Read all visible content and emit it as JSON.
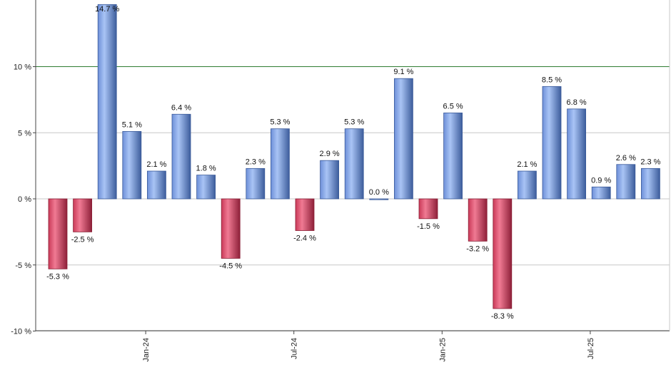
{
  "chart_data": {
    "type": "bar",
    "title": "",
    "xlabel": "",
    "ylabel": "",
    "ylim": [
      -10,
      15
    ],
    "yticks": [
      {
        "value": -10,
        "label": "-10 %"
      },
      {
        "value": -5,
        "label": "-5 %"
      },
      {
        "value": 0,
        "label": "0 %"
      },
      {
        "value": 5,
        "label": "5 %"
      },
      {
        "value": 10,
        "label": "10 %"
      }
    ],
    "reference_line": {
      "value": 10,
      "color": "#2e7d32"
    },
    "grid": true,
    "values": [
      -5.3,
      -2.5,
      14.7,
      5.1,
      2.1,
      6.4,
      1.8,
      -4.5,
      2.3,
      5.3,
      -2.4,
      2.9,
      5.3,
      0.0,
      9.1,
      -1.5,
      6.5,
      -3.2,
      -8.3,
      2.1,
      8.5,
      6.8,
      0.9,
      2.6,
      2.3
    ],
    "labels": [
      "-5.3 %",
      "-2.5 %",
      "14.7 %",
      "5.1 %",
      "2.1 %",
      "6.4 %",
      "1.8 %",
      "-4.5 %",
      "2.3 %",
      "5.3 %",
      "-2.4 %",
      "2.9 %",
      "5.3 %",
      "0.0 %",
      "9.1 %",
      "-1.5 %",
      "6.5 %",
      "-3.2 %",
      "-8.3 %",
      "2.1 %",
      "8.5 %",
      "6.8 %",
      "0.9 %",
      "2.6 %",
      "2.3 %"
    ],
    "xticks": [
      {
        "index": 4,
        "label": "Jan-24"
      },
      {
        "index": 10,
        "label": "Jul-24"
      },
      {
        "index": 16,
        "label": "Jan-25"
      },
      {
        "index": 22,
        "label": "Jul-25"
      }
    ],
    "colors": {
      "positive": "#7fa3e6",
      "positive_dark": "#3a5a9a",
      "negative": "#e0506e",
      "negative_dark": "#8a1f35",
      "grid": "#c8c8c8",
      "axis": "#444444"
    }
  }
}
